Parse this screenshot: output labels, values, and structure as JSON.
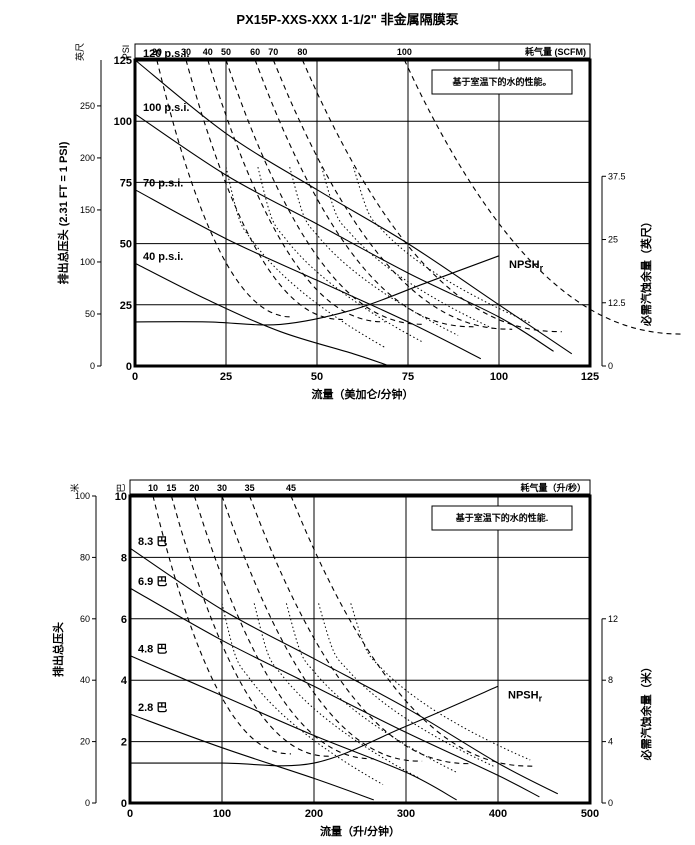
{
  "page": {
    "title": "PX15P-XXS-XXX 1-1/2\" 非金属隔膜泵"
  },
  "chart_data": [
    {
      "type": "line",
      "title": "PX15P-XXS-XXX 1-1/2\" 非金属隔膜泵",
      "xlabel": "流量（美加仑/分钟）",
      "ylabel": "排出总压头 (2.31 FT = 1 PSI)",
      "y_outer_unit": "英尺",
      "y_inner_unit": "PSI",
      "y2label": "必需汽蚀余量（英尺）",
      "air_axis_title": "耗气量 (SCFM)",
      "note": "基于室温下的水的性能。",
      "xlim": [
        0,
        125
      ],
      "ylim_psi": [
        0,
        125
      ],
      "y_ticks_ft": [
        "0",
        "50",
        "100",
        "150",
        "200",
        "250"
      ],
      "y_ticks_psi": [
        "0",
        "25",
        "50",
        "75",
        "100",
        "125"
      ],
      "x_ticks": [
        "0",
        "25",
        "50",
        "75",
        "100",
        "125"
      ],
      "y2_ticks": [
        "0",
        "12.5",
        "25",
        "37.5"
      ],
      "air_ticks": [
        {
          "label": "20",
          "x": 6
        },
        {
          "label": "30",
          "x": 14
        },
        {
          "label": "40",
          "x": 20
        },
        {
          "label": "50",
          "x": 25
        },
        {
          "label": "60",
          "x": 33
        },
        {
          "label": "70",
          "x": 38
        },
        {
          "label": "80",
          "x": 46
        },
        {
          "label": "100",
          "x": 74
        }
      ],
      "series": [
        {
          "name": "120 p.s.i.",
          "x": [
            0,
            25,
            50,
            75,
            100,
            120
          ],
          "y": [
            125,
            95,
            72,
            50,
            25,
            5
          ]
        },
        {
          "name": "100 p.s.i.",
          "x": [
            0,
            25,
            50,
            75,
            100,
            115
          ],
          "y": [
            103,
            78,
            58,
            38,
            20,
            6
          ]
        },
        {
          "name": "70 p.s.i.",
          "x": [
            0,
            25,
            50,
            75,
            95
          ],
          "y": [
            72,
            52,
            35,
            18,
            3
          ]
        },
        {
          "name": "40 p.s.i.",
          "x": [
            0,
            20,
            40,
            60,
            70
          ],
          "y": [
            42,
            27,
            14,
            5,
            0
          ]
        },
        {
          "name": "NPSHr",
          "x": [
            0,
            20,
            40,
            60,
            80,
            100
          ],
          "y": [
            18,
            18,
            17,
            23,
            34,
            45
          ]
        }
      ]
    },
    {
      "type": "line",
      "xlabel": "流量（升/分钟）",
      "ylabel": "排出总压头",
      "y_outer_unit": "米",
      "y_inner_unit": "巴",
      "y2label": "必需汽蚀余量（米）",
      "air_axis_title": "耗气量（升/秒）",
      "note": "基于室温下的水的性能.",
      "xlim": [
        0,
        500
      ],
      "ylim_bar": [
        0,
        10
      ],
      "y_ticks_m": [
        "0",
        "20",
        "40",
        "60",
        "80",
        "100"
      ],
      "y_ticks_bar": [
        "0",
        "2",
        "4",
        "6",
        "8",
        "10"
      ],
      "x_ticks": [
        "0",
        "100",
        "200",
        "300",
        "400",
        "500"
      ],
      "y2_ticks": [
        "0",
        "4",
        "8",
        "12"
      ],
      "air_ticks": [
        {
          "label": "10",
          "x": 25
        },
        {
          "label": "15",
          "x": 45
        },
        {
          "label": "20",
          "x": 70
        },
        {
          "label": "30",
          "x": 100
        },
        {
          "label": "35",
          "x": 130
        },
        {
          "label": "45",
          "x": 175
        }
      ],
      "series": [
        {
          "name": "8.3 巴",
          "x": [
            0,
            100,
            200,
            300,
            400,
            465
          ],
          "y": [
            8.3,
            6.3,
            4.7,
            3.1,
            1.3,
            0.3
          ]
        },
        {
          "name": "6.9 巴",
          "x": [
            0,
            100,
            200,
            300,
            400,
            445
          ],
          "y": [
            7,
            5.3,
            3.8,
            2.3,
            0.9,
            0.2
          ]
        },
        {
          "name": "4.8 巴",
          "x": [
            0,
            100,
            200,
            300,
            355
          ],
          "y": [
            4.8,
            3.5,
            2.2,
            1.0,
            0.1
          ]
        },
        {
          "name": "2.8 巴",
          "x": [
            0,
            100,
            200,
            265
          ],
          "y": [
            2.9,
            1.8,
            0.8,
            0.1
          ]
        },
        {
          "name": "NPSHr",
          "x": [
            0,
            100,
            200,
            300,
            400
          ],
          "y": [
            1.3,
            1.3,
            1.3,
            2.5,
            3.8
          ]
        }
      ]
    }
  ]
}
